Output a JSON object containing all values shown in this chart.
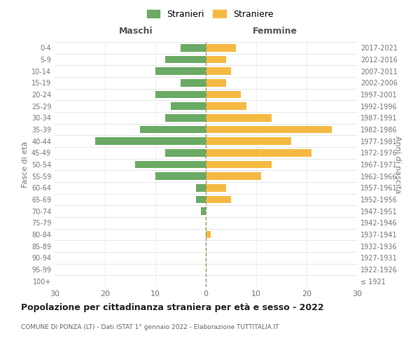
{
  "age_groups": [
    "100+",
    "95-99",
    "90-94",
    "85-89",
    "80-84",
    "75-79",
    "70-74",
    "65-69",
    "60-64",
    "55-59",
    "50-54",
    "45-49",
    "40-44",
    "35-39",
    "30-34",
    "25-29",
    "20-24",
    "15-19",
    "10-14",
    "5-9",
    "0-4"
  ],
  "birth_years": [
    "≤ 1921",
    "1922-1926",
    "1927-1931",
    "1932-1936",
    "1937-1941",
    "1942-1946",
    "1947-1951",
    "1952-1956",
    "1957-1961",
    "1962-1966",
    "1967-1971",
    "1972-1976",
    "1977-1981",
    "1982-1986",
    "1987-1991",
    "1992-1996",
    "1997-2001",
    "2002-2006",
    "2007-2011",
    "2012-2016",
    "2017-2021"
  ],
  "maschi": [
    0,
    0,
    0,
    0,
    0,
    0,
    1,
    2,
    2,
    10,
    14,
    8,
    22,
    13,
    8,
    7,
    10,
    5,
    10,
    8,
    5
  ],
  "femmine": [
    0,
    0,
    0,
    0,
    1,
    0,
    0,
    5,
    4,
    11,
    13,
    21,
    17,
    25,
    13,
    8,
    7,
    4,
    5,
    4,
    6
  ],
  "color_maschi": "#6aaa64",
  "color_femmine": "#f5b942",
  "title": "Popolazione per cittadinanza straniera per età e sesso - 2022",
  "subtitle": "COMUNE DI PONZA (LT) - Dati ISTAT 1° gennaio 2022 - Elaborazione TUTTITALIA.IT",
  "xlabel_left": "Maschi",
  "xlabel_right": "Femmine",
  "ylabel_left": "Fasce di età",
  "ylabel_right": "Anni di nascita",
  "xlim": 30,
  "legend_stranieri": "Stranieri",
  "legend_straniere": "Straniere",
  "background_color": "#ffffff",
  "grid_color": "#cccccc"
}
